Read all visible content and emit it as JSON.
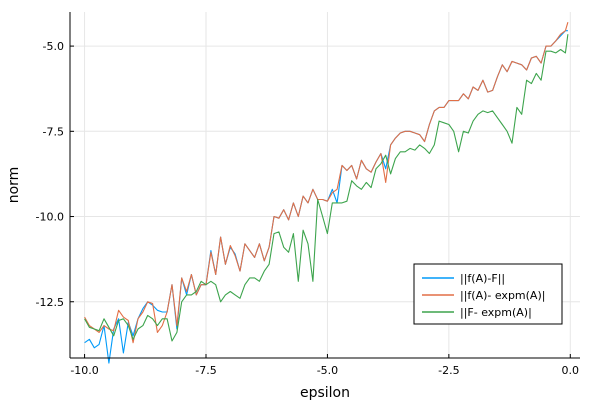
{
  "chart_data": {
    "type": "line",
    "xlabel": "epsilon",
    "ylabel": "norm",
    "xlim": [
      -10.3,
      0.2
    ],
    "ylim": [
      -14.15,
      -4.0
    ],
    "grid": true,
    "legend_position": "bottom-right",
    "x_ticks": [
      {
        "value": -10.0,
        "label": "-10.0"
      },
      {
        "value": -7.5,
        "label": "-7.5"
      },
      {
        "value": -5.0,
        "label": "-5.0"
      },
      {
        "value": -2.5,
        "label": "-2.5"
      },
      {
        "value": 0.0,
        "label": "0.0"
      }
    ],
    "y_ticks": [
      {
        "value": -12.5,
        "label": "-12.5"
      },
      {
        "value": -10.0,
        "label": "-10.0"
      },
      {
        "value": -7.5,
        "label": "-7.5"
      },
      {
        "value": -5.0,
        "label": "-5.0"
      }
    ],
    "series": [
      {
        "name": "||f(A)-F||",
        "color": "#009af9",
        "points": [
          [
            -10.0,
            -13.7
          ],
          [
            -9.9,
            -13.6
          ],
          [
            -9.8,
            -13.85
          ],
          [
            -9.7,
            -13.75
          ],
          [
            -9.6,
            -13.2
          ],
          [
            -9.5,
            -14.3
          ],
          [
            -9.4,
            -13.3
          ],
          [
            -9.3,
            -13.0
          ],
          [
            -9.2,
            -14.0
          ],
          [
            -9.1,
            -13.1
          ],
          [
            -9.0,
            -13.5
          ],
          [
            -8.9,
            -13.0
          ],
          [
            -8.8,
            -12.7
          ],
          [
            -8.7,
            -12.5
          ],
          [
            -8.6,
            -12.6
          ],
          [
            -8.5,
            -12.75
          ],
          [
            -8.4,
            -12.8
          ],
          [
            -8.3,
            -12.8
          ],
          [
            -8.2,
            -12.0
          ],
          [
            -8.1,
            -13.3
          ],
          [
            -8.0,
            -11.8
          ],
          [
            -7.9,
            -12.3
          ],
          [
            -7.8,
            -11.7
          ],
          [
            -7.7,
            -12.3
          ],
          [
            -7.6,
            -12.0
          ],
          [
            -7.5,
            -12.0
          ],
          [
            -7.4,
            -11.0
          ],
          [
            -7.3,
            -11.7
          ],
          [
            -7.2,
            -10.6
          ],
          [
            -7.1,
            -11.4
          ],
          [
            -7.0,
            -10.9
          ],
          [
            -6.9,
            -11.1
          ],
          [
            -6.8,
            -11.6
          ],
          [
            -6.7,
            -10.8
          ],
          [
            -6.6,
            -11.0
          ],
          [
            -6.5,
            -11.2
          ],
          [
            -6.4,
            -10.8
          ],
          [
            -6.3,
            -11.3
          ],
          [
            -6.2,
            -10.9
          ],
          [
            -6.1,
            -10.0
          ],
          [
            -6.0,
            -10.05
          ],
          [
            -5.9,
            -9.8
          ],
          [
            -5.8,
            -10.1
          ],
          [
            -5.7,
            -9.6
          ],
          [
            -5.6,
            -10.0
          ],
          [
            -5.5,
            -9.4
          ],
          [
            -5.4,
            -9.6
          ],
          [
            -5.3,
            -9.2
          ],
          [
            -5.2,
            -9.5
          ],
          [
            -5.1,
            -9.5
          ],
          [
            -5.0,
            -9.55
          ],
          [
            -4.9,
            -9.2
          ],
          [
            -4.8,
            -9.6
          ],
          [
            -4.7,
            -8.5
          ],
          [
            -4.6,
            -8.65
          ],
          [
            -4.5,
            -8.5
          ],
          [
            -4.4,
            -8.9
          ],
          [
            -4.3,
            -8.35
          ],
          [
            -4.2,
            -8.6
          ],
          [
            -4.1,
            -8.7
          ],
          [
            -4.0,
            -8.4
          ],
          [
            -3.9,
            -8.15
          ],
          [
            -3.8,
            -8.6
          ],
          [
            -3.7,
            -7.9
          ],
          [
            -3.6,
            -7.7
          ],
          [
            -3.5,
            -7.55
          ],
          [
            -3.4,
            -7.5
          ],
          [
            -3.3,
            -7.5
          ],
          [
            -3.2,
            -7.55
          ],
          [
            -3.1,
            -7.6
          ],
          [
            -3.0,
            -7.8
          ],
          [
            -2.9,
            -7.3
          ],
          [
            -2.8,
            -6.9
          ],
          [
            -2.7,
            -6.8
          ],
          [
            -2.6,
            -6.8
          ],
          [
            -2.5,
            -6.6
          ],
          [
            -2.4,
            -6.6
          ],
          [
            -2.3,
            -6.6
          ],
          [
            -2.2,
            -6.4
          ],
          [
            -2.1,
            -6.55
          ],
          [
            -2.0,
            -6.2
          ],
          [
            -1.9,
            -6.3
          ],
          [
            -1.8,
            -6.0
          ],
          [
            -1.7,
            -6.35
          ],
          [
            -1.6,
            -6.3
          ],
          [
            -1.5,
            -5.9
          ],
          [
            -1.4,
            -5.55
          ],
          [
            -1.3,
            -5.75
          ],
          [
            -1.2,
            -5.45
          ],
          [
            -1.1,
            -5.5
          ],
          [
            -1.0,
            -5.55
          ],
          [
            -0.9,
            -5.7
          ],
          [
            -0.8,
            -5.35
          ],
          [
            -0.7,
            -5.3
          ],
          [
            -0.6,
            -5.5
          ],
          [
            -0.5,
            -5.0
          ],
          [
            -0.4,
            -5.0
          ],
          [
            -0.3,
            -4.85
          ],
          [
            -0.2,
            -4.7
          ],
          [
            -0.1,
            -4.55
          ],
          [
            -0.05,
            -4.55
          ]
        ]
      },
      {
        "name": "||f(A)- expm(A)|",
        "color": "#e26f46",
        "points": [
          [
            -10.0,
            -12.95
          ],
          [
            -9.9,
            -13.2
          ],
          [
            -9.8,
            -13.3
          ],
          [
            -9.7,
            -13.4
          ],
          [
            -9.6,
            -13.2
          ],
          [
            -9.5,
            -13.3
          ],
          [
            -9.4,
            -13.35
          ],
          [
            -9.3,
            -12.75
          ],
          [
            -9.2,
            -12.95
          ],
          [
            -9.1,
            -13.05
          ],
          [
            -9.0,
            -13.7
          ],
          [
            -8.9,
            -13.0
          ],
          [
            -8.8,
            -12.8
          ],
          [
            -8.7,
            -12.5
          ],
          [
            -8.6,
            -12.55
          ],
          [
            -8.5,
            -13.4
          ],
          [
            -8.4,
            -13.2
          ],
          [
            -8.3,
            -12.8
          ],
          [
            -8.2,
            -12.0
          ],
          [
            -8.1,
            -13.2
          ],
          [
            -8.0,
            -11.8
          ],
          [
            -7.9,
            -12.2
          ],
          [
            -7.8,
            -11.7
          ],
          [
            -7.7,
            -12.3
          ],
          [
            -7.6,
            -12.0
          ],
          [
            -7.5,
            -12.0
          ],
          [
            -7.4,
            -11.05
          ],
          [
            -7.3,
            -11.7
          ],
          [
            -7.2,
            -10.6
          ],
          [
            -7.1,
            -11.4
          ],
          [
            -7.0,
            -10.85
          ],
          [
            -6.9,
            -11.15
          ],
          [
            -6.8,
            -11.6
          ],
          [
            -6.7,
            -10.8
          ],
          [
            -6.6,
            -11.0
          ],
          [
            -6.5,
            -11.2
          ],
          [
            -6.4,
            -10.8
          ],
          [
            -6.3,
            -11.3
          ],
          [
            -6.2,
            -10.9
          ],
          [
            -6.1,
            -10.0
          ],
          [
            -6.0,
            -10.05
          ],
          [
            -5.9,
            -9.8
          ],
          [
            -5.8,
            -10.1
          ],
          [
            -5.7,
            -9.6
          ],
          [
            -5.6,
            -10.0
          ],
          [
            -5.5,
            -9.4
          ],
          [
            -5.4,
            -9.6
          ],
          [
            -5.3,
            -9.2
          ],
          [
            -5.2,
            -9.5
          ],
          [
            -5.1,
            -9.5
          ],
          [
            -5.0,
            -9.55
          ],
          [
            -4.9,
            -9.3
          ],
          [
            -4.8,
            -9.2
          ],
          [
            -4.7,
            -8.5
          ],
          [
            -4.6,
            -8.65
          ],
          [
            -4.5,
            -8.5
          ],
          [
            -4.4,
            -8.9
          ],
          [
            -4.3,
            -8.35
          ],
          [
            -4.2,
            -8.6
          ],
          [
            -4.1,
            -8.7
          ],
          [
            -4.0,
            -8.4
          ],
          [
            -3.9,
            -8.15
          ],
          [
            -3.8,
            -9.0
          ],
          [
            -3.7,
            -7.9
          ],
          [
            -3.6,
            -7.7
          ],
          [
            -3.5,
            -7.55
          ],
          [
            -3.4,
            -7.5
          ],
          [
            -3.3,
            -7.5
          ],
          [
            -3.2,
            -7.55
          ],
          [
            -3.1,
            -7.6
          ],
          [
            -3.0,
            -7.8
          ],
          [
            -2.9,
            -7.3
          ],
          [
            -2.8,
            -6.9
          ],
          [
            -2.7,
            -6.8
          ],
          [
            -2.6,
            -6.8
          ],
          [
            -2.5,
            -6.6
          ],
          [
            -2.4,
            -6.6
          ],
          [
            -2.3,
            -6.6
          ],
          [
            -2.2,
            -6.4
          ],
          [
            -2.1,
            -6.55
          ],
          [
            -2.0,
            -6.2
          ],
          [
            -1.9,
            -6.3
          ],
          [
            -1.8,
            -6.0
          ],
          [
            -1.7,
            -6.35
          ],
          [
            -1.6,
            -6.3
          ],
          [
            -1.5,
            -5.9
          ],
          [
            -1.4,
            -5.55
          ],
          [
            -1.3,
            -5.75
          ],
          [
            -1.2,
            -5.45
          ],
          [
            -1.1,
            -5.5
          ],
          [
            -1.0,
            -5.55
          ],
          [
            -0.9,
            -5.7
          ],
          [
            -0.8,
            -5.35
          ],
          [
            -0.7,
            -5.3
          ],
          [
            -0.6,
            -5.5
          ],
          [
            -0.5,
            -5.0
          ],
          [
            -0.4,
            -5.0
          ],
          [
            -0.3,
            -4.85
          ],
          [
            -0.2,
            -4.65
          ],
          [
            -0.1,
            -4.55
          ],
          [
            -0.05,
            -4.3
          ]
        ]
      },
      {
        "name": "||F- expm(A)|",
        "color": "#3da44d",
        "points": [
          [
            -10.0,
            -13.0
          ],
          [
            -9.9,
            -13.25
          ],
          [
            -9.8,
            -13.3
          ],
          [
            -9.7,
            -13.35
          ],
          [
            -9.6,
            -13.0
          ],
          [
            -9.5,
            -13.25
          ],
          [
            -9.4,
            -13.5
          ],
          [
            -9.3,
            -13.05
          ],
          [
            -9.2,
            -13.0
          ],
          [
            -9.1,
            -13.2
          ],
          [
            -9.0,
            -13.6
          ],
          [
            -8.9,
            -13.3
          ],
          [
            -8.8,
            -13.2
          ],
          [
            -8.7,
            -12.9
          ],
          [
            -8.6,
            -13.0
          ],
          [
            -8.5,
            -13.2
          ],
          [
            -8.4,
            -13.0
          ],
          [
            -8.3,
            -13.0
          ],
          [
            -8.2,
            -13.65
          ],
          [
            -8.1,
            -13.4
          ],
          [
            -8.0,
            -12.5
          ],
          [
            -7.9,
            -12.3
          ],
          [
            -7.8,
            -12.3
          ],
          [
            -7.7,
            -12.2
          ],
          [
            -7.6,
            -11.9
          ],
          [
            -7.5,
            -12.0
          ],
          [
            -7.4,
            -11.9
          ],
          [
            -7.3,
            -12.0
          ],
          [
            -7.2,
            -12.5
          ],
          [
            -7.1,
            -12.3
          ],
          [
            -7.0,
            -12.2
          ],
          [
            -6.9,
            -12.3
          ],
          [
            -6.8,
            -12.4
          ],
          [
            -6.7,
            -12.0
          ],
          [
            -6.6,
            -11.8
          ],
          [
            -6.5,
            -11.8
          ],
          [
            -6.4,
            -11.9
          ],
          [
            -6.3,
            -11.6
          ],
          [
            -6.2,
            -11.4
          ],
          [
            -6.1,
            -10.5
          ],
          [
            -6.0,
            -10.45
          ],
          [
            -5.9,
            -10.9
          ],
          [
            -5.8,
            -11.05
          ],
          [
            -5.7,
            -10.5
          ],
          [
            -5.6,
            -11.9
          ],
          [
            -5.5,
            -10.4
          ],
          [
            -5.4,
            -10.8
          ],
          [
            -5.3,
            -11.9
          ],
          [
            -5.2,
            -9.5
          ],
          [
            -5.1,
            -10.0
          ],
          [
            -5.0,
            -10.5
          ],
          [
            -4.9,
            -9.6
          ],
          [
            -4.8,
            -9.6
          ],
          [
            -4.7,
            -9.6
          ],
          [
            -4.6,
            -9.55
          ],
          [
            -4.5,
            -8.95
          ],
          [
            -4.4,
            -9.1
          ],
          [
            -4.3,
            -9.2
          ],
          [
            -4.2,
            -9.0
          ],
          [
            -4.1,
            -9.15
          ],
          [
            -4.0,
            -8.6
          ],
          [
            -3.9,
            -8.45
          ],
          [
            -3.8,
            -8.2
          ],
          [
            -3.7,
            -8.75
          ],
          [
            -3.6,
            -8.3
          ],
          [
            -3.5,
            -8.1
          ],
          [
            -3.4,
            -8.1
          ],
          [
            -3.3,
            -8.0
          ],
          [
            -3.2,
            -8.05
          ],
          [
            -3.1,
            -7.9
          ],
          [
            -3.0,
            -8.0
          ],
          [
            -2.9,
            -8.15
          ],
          [
            -2.8,
            -7.9
          ],
          [
            -2.7,
            -7.2
          ],
          [
            -2.6,
            -7.25
          ],
          [
            -2.5,
            -7.3
          ],
          [
            -2.4,
            -7.5
          ],
          [
            -2.3,
            -8.1
          ],
          [
            -2.2,
            -7.5
          ],
          [
            -2.1,
            -7.55
          ],
          [
            -2.0,
            -7.2
          ],
          [
            -1.9,
            -7.0
          ],
          [
            -1.8,
            -6.9
          ],
          [
            -1.7,
            -6.95
          ],
          [
            -1.6,
            -6.9
          ],
          [
            -1.5,
            -7.1
          ],
          [
            -1.4,
            -7.3
          ],
          [
            -1.3,
            -7.5
          ],
          [
            -1.2,
            -7.85
          ],
          [
            -1.1,
            -6.8
          ],
          [
            -1.0,
            -7.0
          ],
          [
            -0.9,
            -6.0
          ],
          [
            -0.8,
            -6.1
          ],
          [
            -0.7,
            -5.8
          ],
          [
            -0.6,
            -6.0
          ],
          [
            -0.5,
            -5.15
          ],
          [
            -0.4,
            -5.15
          ],
          [
            -0.3,
            -5.2
          ],
          [
            -0.2,
            -5.1
          ],
          [
            -0.1,
            -5.2
          ],
          [
            -0.05,
            -4.65
          ]
        ]
      }
    ]
  }
}
